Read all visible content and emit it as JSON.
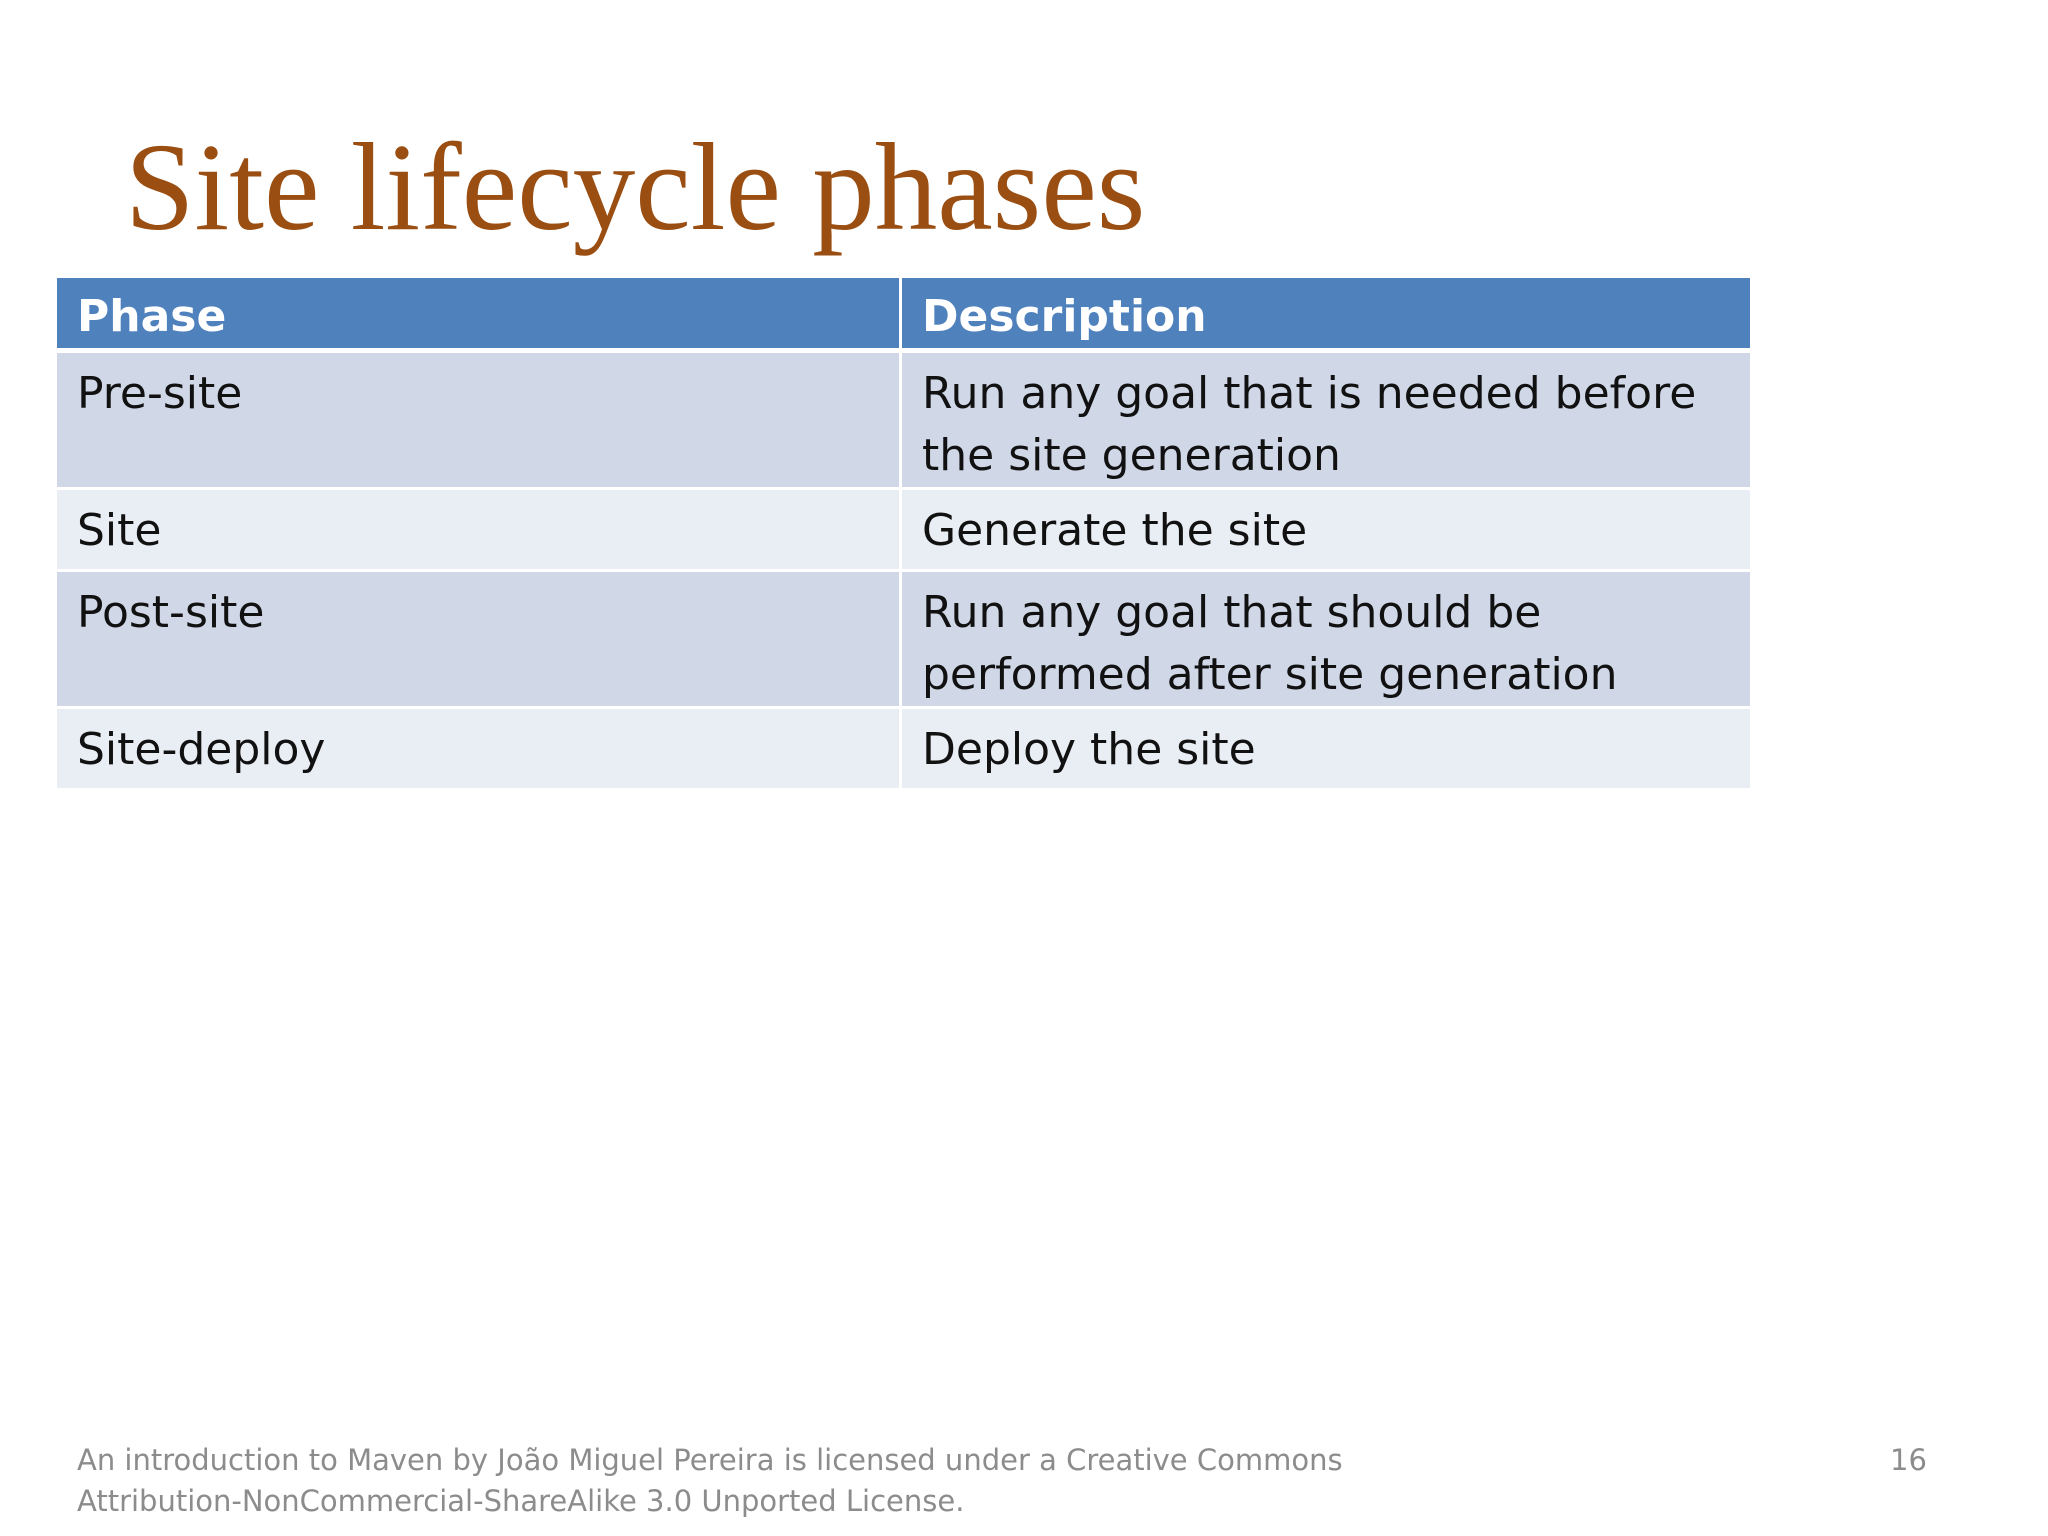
{
  "slide": {
    "title": "Site lifecycle phases",
    "table": {
      "headers": [
        "Phase",
        "Description"
      ],
      "rows": [
        {
          "phase": "Pre-site",
          "description": "Run any goal that is needed before the site generation"
        },
        {
          "phase": "Site",
          "description": "Generate the site"
        },
        {
          "phase": "Post-site",
          "description": "Run any goal that should be performed after site generation"
        },
        {
          "phase": "Site-deploy",
          "description": "Deploy the site"
        }
      ]
    },
    "footer": "An introduction to Maven by João Miguel Pereira is licensed under a Creative Commons Attribution-NonCommercial-ShareAlike 3.0 Unported License.",
    "page_number": "16"
  },
  "colors": {
    "title": "#9a4e12",
    "header_bg": "#4f81bd",
    "row_odd_bg": "#d0d8e8",
    "row_even_bg": "#e9edf4",
    "footer_text": "#8c8c8c"
  }
}
